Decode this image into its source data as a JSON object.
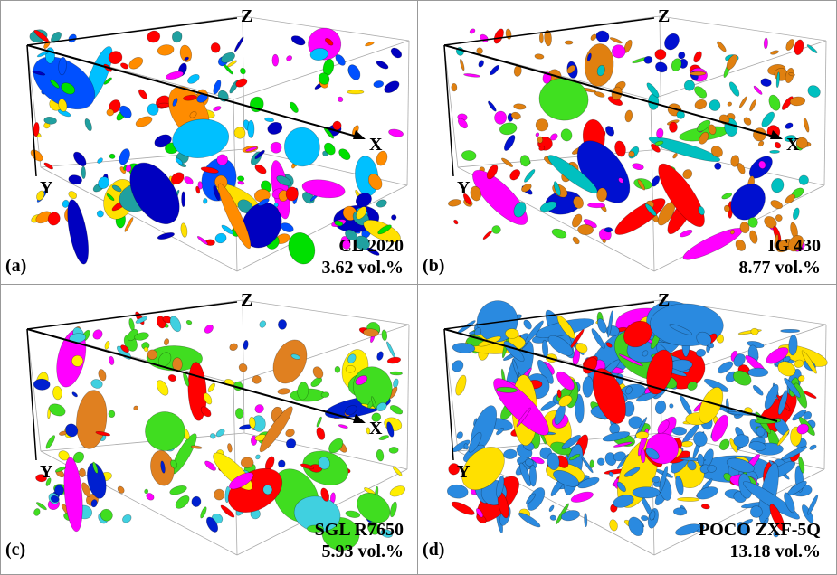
{
  "panels": [
    {
      "label": "(a)",
      "material": "CL 2020",
      "porosity": "3.62 vol.%",
      "axes": {
        "z": "Z",
        "x": "X",
        "y": "Y"
      }
    },
    {
      "label": "(b)",
      "material": "IG 430",
      "porosity": "8.77 vol.%",
      "axes": {
        "z": "Z",
        "x": "X",
        "y": "Y"
      }
    },
    {
      "label": "(c)",
      "material": "SGL R7650",
      "porosity": "5.93 vol.%",
      "axes": {
        "z": "Z",
        "x": "X",
        "y": "Y"
      }
    },
    {
      "label": "(d)",
      "material": "POCO ZXF-5Q",
      "porosity": "13.18 vol.%",
      "axes": {
        "z": "Z",
        "y": "Y"
      }
    }
  ]
}
